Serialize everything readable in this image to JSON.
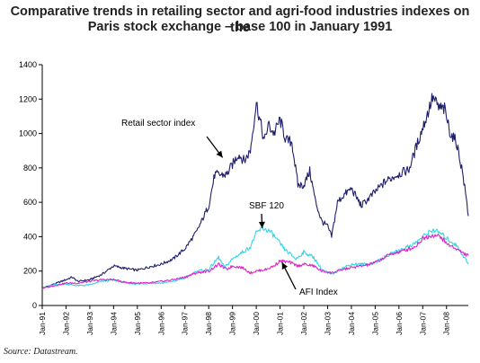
{
  "chart_data": {
    "type": "line",
    "title_line1": "Comparative trends in retailing sector and agri-food industries indexes on the",
    "title_line2": "Paris stock exchange – base 100 in January 1991",
    "xlabel": "",
    "ylabel": "",
    "x_ticks": [
      "Jan-91",
      "Jan-92",
      "Jan-93",
      "Jan-94",
      "Jan-95",
      "Jan-96",
      "Jan-97",
      "Jan-98",
      "Jan-99",
      "Jan-00",
      "Jan-01",
      "Jan-02",
      "Jan-03",
      "Jan-04",
      "Jan-05",
      "Jan-06",
      "Jan-07",
      "Jan-08"
    ],
    "y_ticks": [
      0,
      200,
      400,
      600,
      800,
      1000,
      1200,
      1400
    ],
    "ylim": [
      0,
      1400
    ],
    "xlim": [
      "Jan-91",
      "Dec-08"
    ],
    "grid": false,
    "legend": "none",
    "series": [
      {
        "name": "Retail sector index",
        "color": "#1f1f6b",
        "points": [
          [
            "1991-01",
            100
          ],
          [
            "1991-07",
            125
          ],
          [
            "1992-01",
            150
          ],
          [
            "1992-04",
            165
          ],
          [
            "1992-07",
            140
          ],
          [
            "1993-01",
            150
          ],
          [
            "1993-07",
            180
          ],
          [
            "1994-01",
            230
          ],
          [
            "1994-07",
            215
          ],
          [
            "1995-01",
            205
          ],
          [
            "1995-07",
            225
          ],
          [
            "1996-01",
            240
          ],
          [
            "1996-07",
            270
          ],
          [
            "1997-01",
            330
          ],
          [
            "1997-07",
            430
          ],
          [
            "1998-01",
            580
          ],
          [
            "1998-04",
            760
          ],
          [
            "1998-07",
            760
          ],
          [
            "1998-10",
            760
          ],
          [
            "1999-01",
            820
          ],
          [
            "1999-04",
            880
          ],
          [
            "1999-07",
            840
          ],
          [
            "1999-10",
            900
          ],
          [
            "2000-01",
            1180
          ],
          [
            "2000-03",
            1070
          ],
          [
            "2000-05",
            950
          ],
          [
            "2000-07",
            1050
          ],
          [
            "2000-10",
            1000
          ],
          [
            "2001-01",
            1080
          ],
          [
            "2001-04",
            960
          ],
          [
            "2001-07",
            950
          ],
          [
            "2001-10",
            700
          ],
          [
            "2002-01",
            700
          ],
          [
            "2002-04",
            780
          ],
          [
            "2002-07",
            600
          ],
          [
            "2002-10",
            490
          ],
          [
            "2003-01",
            460
          ],
          [
            "2003-03",
            400
          ],
          [
            "2003-06",
            600
          ],
          [
            "2003-09",
            640
          ],
          [
            "2004-01",
            680
          ],
          [
            "2004-06",
            580
          ],
          [
            "2005-01",
            660
          ],
          [
            "2005-06",
            720
          ],
          [
            "2005-12",
            760
          ],
          [
            "2006-06",
            790
          ],
          [
            "2006-12",
            1000
          ],
          [
            "2007-03",
            1100
          ],
          [
            "2007-06",
            1210
          ],
          [
            "2007-09",
            1150
          ],
          [
            "2007-12",
            1140
          ],
          [
            "2008-03",
            1000
          ],
          [
            "2008-06",
            950
          ],
          [
            "2008-09",
            780
          ],
          [
            "2008-11",
            620
          ],
          [
            "2008-12",
            520
          ]
        ]
      },
      {
        "name": "SBF 120",
        "color": "#33d6e8",
        "points": [
          [
            "1991-01",
            100
          ],
          [
            "1991-07",
            120
          ],
          [
            "1992-01",
            125
          ],
          [
            "1992-07",
            115
          ],
          [
            "1993-01",
            120
          ],
          [
            "1993-07",
            140
          ],
          [
            "1994-01",
            150
          ],
          [
            "1994-07",
            130
          ],
          [
            "1995-01",
            125
          ],
          [
            "1995-07",
            130
          ],
          [
            "1996-01",
            130
          ],
          [
            "1996-07",
            140
          ],
          [
            "1997-01",
            160
          ],
          [
            "1997-07",
            200
          ],
          [
            "1998-01",
            210
          ],
          [
            "1998-06",
            280
          ],
          [
            "1998-09",
            220
          ],
          [
            "1999-01",
            270
          ],
          [
            "1999-06",
            310
          ],
          [
            "1999-10",
            340
          ],
          [
            "2000-01",
            420
          ],
          [
            "2000-04",
            450
          ],
          [
            "2000-08",
            430
          ],
          [
            "2000-11",
            390
          ],
          [
            "2001-03",
            330
          ],
          [
            "2001-09",
            270
          ],
          [
            "2002-01",
            310
          ],
          [
            "2002-06",
            280
          ],
          [
            "2002-10",
            210
          ],
          [
            "2003-03",
            180
          ],
          [
            "2003-09",
            220
          ],
          [
            "2004-01",
            240
          ],
          [
            "2004-09",
            240
          ],
          [
            "2005-01",
            250
          ],
          [
            "2005-09",
            300
          ],
          [
            "2006-01",
            320
          ],
          [
            "2006-09",
            360
          ],
          [
            "2007-01",
            400
          ],
          [
            "2007-06",
            440
          ],
          [
            "2007-10",
            420
          ],
          [
            "2008-01",
            390
          ],
          [
            "2008-06",
            350
          ],
          [
            "2008-10",
            280
          ],
          [
            "2008-12",
            240
          ]
        ]
      },
      {
        "name": "AFI Index",
        "color": "#e020c8",
        "points": [
          [
            "1991-01",
            100
          ],
          [
            "1991-07",
            115
          ],
          [
            "1992-01",
            130
          ],
          [
            "1992-07",
            130
          ],
          [
            "1993-01",
            140
          ],
          [
            "1993-07",
            150
          ],
          [
            "1994-01",
            150
          ],
          [
            "1994-07",
            135
          ],
          [
            "1995-01",
            130
          ],
          [
            "1995-07",
            130
          ],
          [
            "1996-01",
            140
          ],
          [
            "1996-07",
            150
          ],
          [
            "1997-01",
            165
          ],
          [
            "1997-07",
            190
          ],
          [
            "1998-01",
            200
          ],
          [
            "1998-06",
            240
          ],
          [
            "1998-10",
            210
          ],
          [
            "1999-01",
            230
          ],
          [
            "1999-06",
            220
          ],
          [
            "1999-10",
            190
          ],
          [
            "2000-01",
            200
          ],
          [
            "2000-06",
            210
          ],
          [
            "2000-10",
            230
          ],
          [
            "2001-01",
            260
          ],
          [
            "2001-06",
            250
          ],
          [
            "2001-10",
            230
          ],
          [
            "2002-01",
            240
          ],
          [
            "2002-06",
            230
          ],
          [
            "2002-10",
            200
          ],
          [
            "2003-03",
            190
          ],
          [
            "2003-09",
            210
          ],
          [
            "2004-01",
            220
          ],
          [
            "2004-09",
            235
          ],
          [
            "2005-01",
            250
          ],
          [
            "2005-09",
            300
          ],
          [
            "2006-01",
            310
          ],
          [
            "2006-09",
            340
          ],
          [
            "2007-01",
            390
          ],
          [
            "2007-06",
            410
          ],
          [
            "2007-10",
            400
          ],
          [
            "2008-01",
            360
          ],
          [
            "2008-06",
            330
          ],
          [
            "2008-10",
            300
          ],
          [
            "2008-12",
            290
          ]
        ]
      }
    ],
    "annotations": [
      {
        "text": "Retail sector index",
        "target": [
          "1998-08",
          860
        ]
      },
      {
        "text": "SBF 120",
        "target": [
          "2000-04",
          450
        ]
      },
      {
        "text": "AFI Index",
        "target": [
          "2001-02",
          250
        ]
      }
    ]
  },
  "source": "Source: Datastream."
}
